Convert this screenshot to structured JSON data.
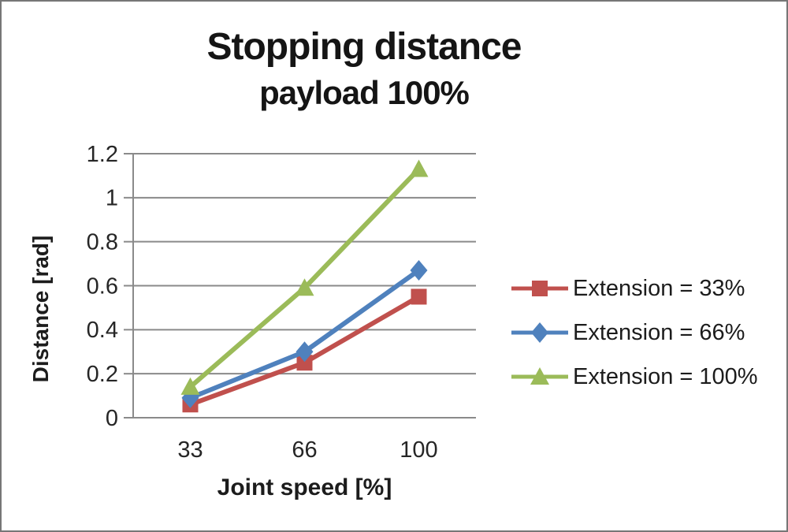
{
  "title": "Stopping distance",
  "subtitle": "payload 100%",
  "chart_data": {
    "type": "line",
    "title": "Stopping distance",
    "subtitle": "payload 100%",
    "xlabel": "Joint speed [%]",
    "ylabel": "Distance [rad]",
    "categories": [
      "33",
      "66",
      "100"
    ],
    "series": [
      {
        "name": "Extension = 33%",
        "color": "#C0504D",
        "marker": "square",
        "values": [
          0.06,
          0.25,
          0.55
        ]
      },
      {
        "name": "Extension = 66%",
        "color": "#4F81BD",
        "marker": "diamond",
        "values": [
          0.09,
          0.3,
          0.67
        ]
      },
      {
        "name": "Extension = 100%",
        "color": "#9BBB59",
        "marker": "triangle",
        "values": [
          0.14,
          0.59,
          1.13
        ]
      }
    ],
    "ylim": [
      0,
      1.2
    ],
    "yticks": [
      "0",
      "0.2",
      "0.4",
      "0.6",
      "0.8",
      "1",
      "1.2"
    ],
    "grid": true,
    "legend_position": "right"
  },
  "colors": {
    "gridline": "#8a8a8a",
    "tick_text": "#262626",
    "frame_border": "#767676"
  }
}
